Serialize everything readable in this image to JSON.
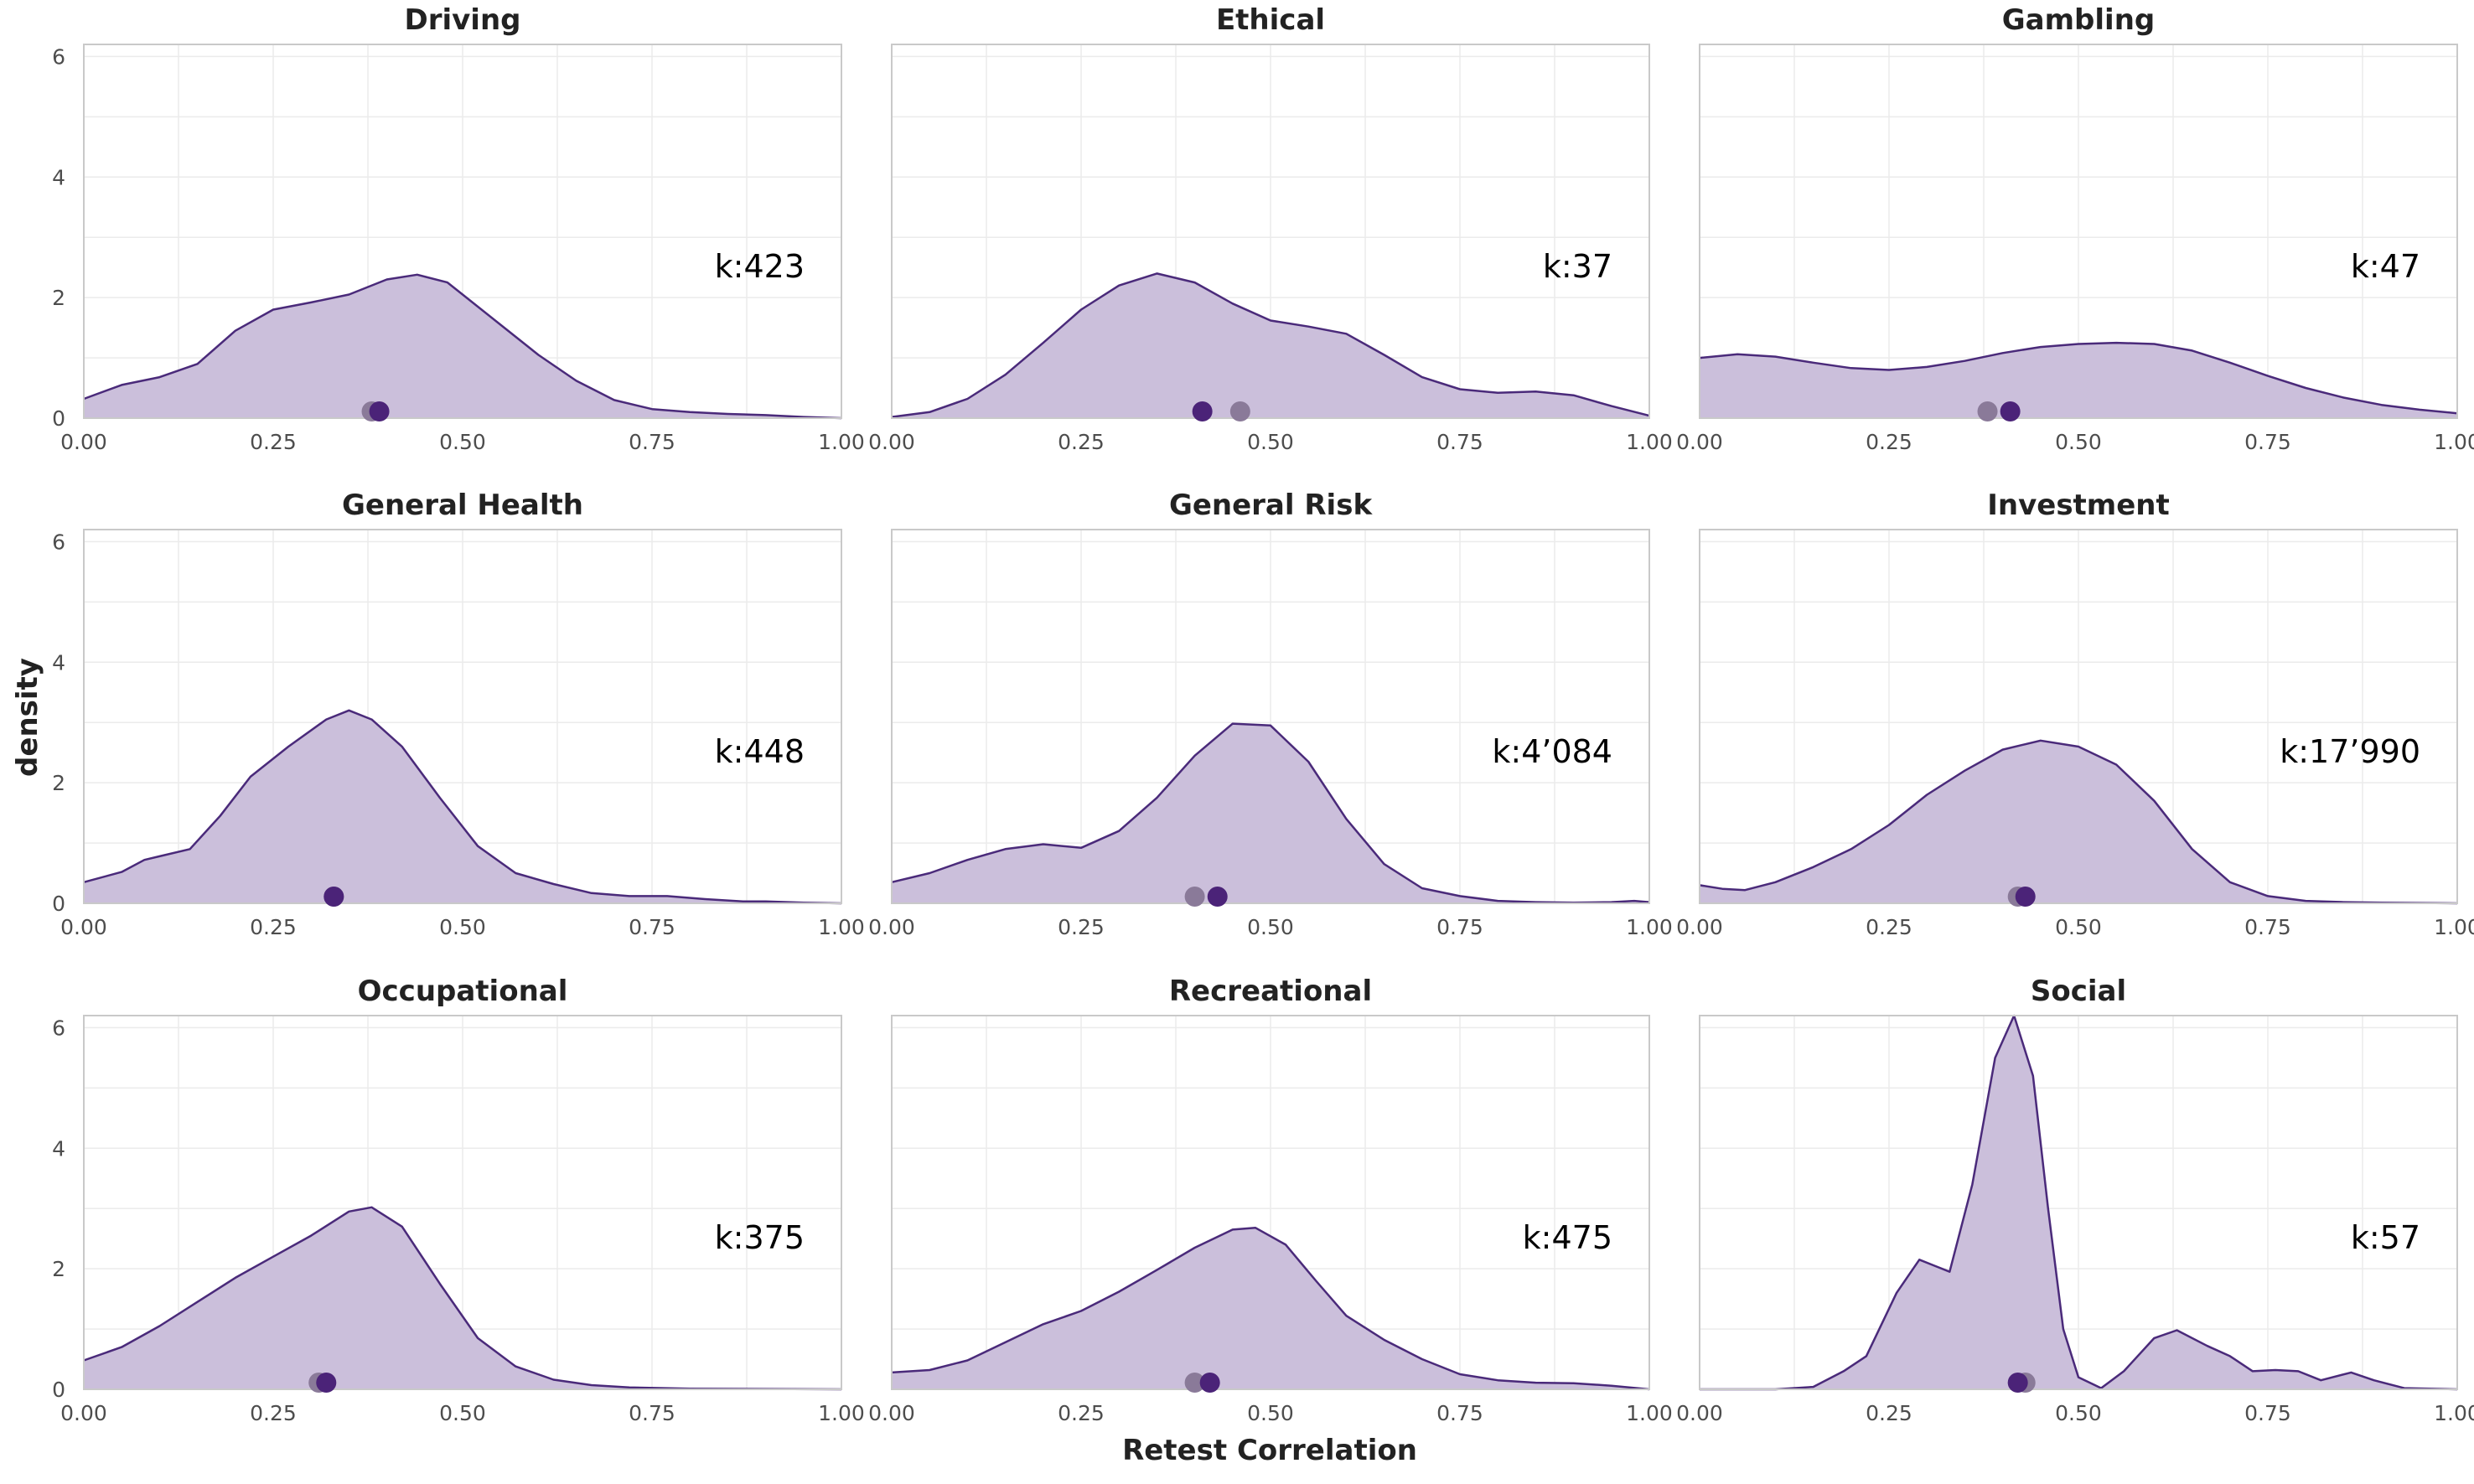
{
  "chart_data": {
    "type": "area",
    "subtype": "density-facets",
    "xlabel": "Retest Correlation",
    "ylabel": "density",
    "xlim": [
      0,
      1
    ],
    "ylim": [
      0,
      6.2
    ],
    "x_ticks": [
      "0.00",
      "0.25",
      "0.50",
      "0.75",
      "1.00"
    ],
    "y_ticks": [
      "0",
      "2",
      "4",
      "6"
    ],
    "grid": true,
    "colors": {
      "fill": "#cbbfdb",
      "line": "#4a2a7a",
      "point_dark": "#4b2378",
      "point_light": "#8a7a99"
    },
    "panels": [
      {
        "title": "Driving",
        "k_label": "k:423",
        "points": [
          {
            "x": 0.39,
            "shade": "dark"
          },
          {
            "x": 0.38,
            "shade": "light"
          }
        ],
        "density": [
          [
            0,
            0.32
          ],
          [
            0.05,
            0.55
          ],
          [
            0.1,
            0.68
          ],
          [
            0.15,
            0.9
          ],
          [
            0.2,
            1.45
          ],
          [
            0.25,
            1.8
          ],
          [
            0.3,
            1.92
          ],
          [
            0.35,
            2.05
          ],
          [
            0.4,
            2.3
          ],
          [
            0.44,
            2.38
          ],
          [
            0.48,
            2.25
          ],
          [
            0.5,
            2.05
          ],
          [
            0.55,
            1.55
          ],
          [
            0.6,
            1.05
          ],
          [
            0.65,
            0.62
          ],
          [
            0.7,
            0.3
          ],
          [
            0.75,
            0.15
          ],
          [
            0.8,
            0.1
          ],
          [
            0.85,
            0.07
          ],
          [
            0.9,
            0.05
          ],
          [
            0.95,
            0.02
          ],
          [
            1,
            0
          ]
        ]
      },
      {
        "title": "Ethical",
        "k_label": "k:37",
        "points": [
          {
            "x": 0.41,
            "shade": "dark"
          },
          {
            "x": 0.46,
            "shade": "light"
          }
        ],
        "density": [
          [
            0,
            0.02
          ],
          [
            0.05,
            0.1
          ],
          [
            0.1,
            0.32
          ],
          [
            0.15,
            0.72
          ],
          [
            0.2,
            1.25
          ],
          [
            0.25,
            1.8
          ],
          [
            0.3,
            2.2
          ],
          [
            0.35,
            2.4
          ],
          [
            0.4,
            2.25
          ],
          [
            0.45,
            1.9
          ],
          [
            0.5,
            1.62
          ],
          [
            0.55,
            1.52
          ],
          [
            0.6,
            1.4
          ],
          [
            0.65,
            1.05
          ],
          [
            0.7,
            0.68
          ],
          [
            0.75,
            0.48
          ],
          [
            0.8,
            0.42
          ],
          [
            0.85,
            0.44
          ],
          [
            0.9,
            0.38
          ],
          [
            0.95,
            0.2
          ],
          [
            1,
            0.04
          ]
        ]
      },
      {
        "title": "Gambling",
        "k_label": "k:47",
        "points": [
          {
            "x": 0.41,
            "shade": "dark"
          },
          {
            "x": 0.38,
            "shade": "light"
          }
        ],
        "density": [
          [
            0,
            1.0
          ],
          [
            0.05,
            1.06
          ],
          [
            0.1,
            1.02
          ],
          [
            0.15,
            0.92
          ],
          [
            0.2,
            0.83
          ],
          [
            0.25,
            0.8
          ],
          [
            0.3,
            0.85
          ],
          [
            0.35,
            0.95
          ],
          [
            0.4,
            1.08
          ],
          [
            0.45,
            1.18
          ],
          [
            0.5,
            1.23
          ],
          [
            0.55,
            1.25
          ],
          [
            0.6,
            1.23
          ],
          [
            0.65,
            1.12
          ],
          [
            0.7,
            0.92
          ],
          [
            0.75,
            0.7
          ],
          [
            0.8,
            0.5
          ],
          [
            0.85,
            0.34
          ],
          [
            0.9,
            0.22
          ],
          [
            0.95,
            0.14
          ],
          [
            1,
            0.08
          ]
        ]
      },
      {
        "title": "General Health",
        "k_label": "k:448",
        "points": [
          {
            "x": 0.33,
            "shade": "dark"
          },
          {
            "x": 0.33,
            "shade": "light"
          }
        ],
        "density": [
          [
            0,
            0.35
          ],
          [
            0.05,
            0.52
          ],
          [
            0.08,
            0.72
          ],
          [
            0.1,
            0.78
          ],
          [
            0.14,
            0.9
          ],
          [
            0.18,
            1.45
          ],
          [
            0.22,
            2.1
          ],
          [
            0.27,
            2.6
          ],
          [
            0.32,
            3.05
          ],
          [
            0.35,
            3.2
          ],
          [
            0.38,
            3.05
          ],
          [
            0.42,
            2.6
          ],
          [
            0.47,
            1.75
          ],
          [
            0.52,
            0.95
          ],
          [
            0.57,
            0.5
          ],
          [
            0.62,
            0.32
          ],
          [
            0.67,
            0.17
          ],
          [
            0.72,
            0.12
          ],
          [
            0.77,
            0.12
          ],
          [
            0.82,
            0.07
          ],
          [
            0.87,
            0.03
          ],
          [
            0.9,
            0.03
          ],
          [
            0.95,
            0.01
          ],
          [
            1,
            0
          ]
        ]
      },
      {
        "title": "General Risk",
        "k_label": "k:4’084",
        "points": [
          {
            "x": 0.43,
            "shade": "dark"
          },
          {
            "x": 0.4,
            "shade": "light"
          }
        ],
        "density": [
          [
            0,
            0.35
          ],
          [
            0.05,
            0.5
          ],
          [
            0.1,
            0.72
          ],
          [
            0.15,
            0.9
          ],
          [
            0.2,
            0.98
          ],
          [
            0.25,
            0.92
          ],
          [
            0.3,
            1.2
          ],
          [
            0.35,
            1.75
          ],
          [
            0.4,
            2.45
          ],
          [
            0.45,
            2.98
          ],
          [
            0.5,
            2.95
          ],
          [
            0.55,
            2.35
          ],
          [
            0.6,
            1.4
          ],
          [
            0.65,
            0.65
          ],
          [
            0.7,
            0.25
          ],
          [
            0.75,
            0.12
          ],
          [
            0.8,
            0.04
          ],
          [
            0.85,
            0.02
          ],
          [
            0.9,
            0.01
          ],
          [
            0.95,
            0.02
          ],
          [
            0.98,
            0.04
          ],
          [
            1,
            0.02
          ]
        ]
      },
      {
        "title": "Investment",
        "k_label": "k:17’990",
        "points": [
          {
            "x": 0.43,
            "shade": "dark"
          },
          {
            "x": 0.42,
            "shade": "light"
          }
        ],
        "density": [
          [
            0,
            0.3
          ],
          [
            0.03,
            0.24
          ],
          [
            0.06,
            0.22
          ],
          [
            0.1,
            0.35
          ],
          [
            0.15,
            0.6
          ],
          [
            0.2,
            0.9
          ],
          [
            0.25,
            1.3
          ],
          [
            0.3,
            1.8
          ],
          [
            0.35,
            2.2
          ],
          [
            0.4,
            2.55
          ],
          [
            0.45,
            2.7
          ],
          [
            0.5,
            2.6
          ],
          [
            0.55,
            2.3
          ],
          [
            0.6,
            1.7
          ],
          [
            0.65,
            0.9
          ],
          [
            0.7,
            0.35
          ],
          [
            0.75,
            0.12
          ],
          [
            0.8,
            0.04
          ],
          [
            0.85,
            0.02
          ],
          [
            0.9,
            0.01
          ],
          [
            1,
            0
          ]
        ]
      },
      {
        "title": "Occupational",
        "k_label": "k:375",
        "points": [
          {
            "x": 0.32,
            "shade": "dark"
          },
          {
            "x": 0.31,
            "shade": "light"
          }
        ],
        "density": [
          [
            0,
            0.48
          ],
          [
            0.05,
            0.7
          ],
          [
            0.1,
            1.05
          ],
          [
            0.15,
            1.45
          ],
          [
            0.2,
            1.85
          ],
          [
            0.25,
            2.2
          ],
          [
            0.3,
            2.55
          ],
          [
            0.35,
            2.95
          ],
          [
            0.38,
            3.02
          ],
          [
            0.42,
            2.7
          ],
          [
            0.47,
            1.75
          ],
          [
            0.52,
            0.85
          ],
          [
            0.57,
            0.38
          ],
          [
            0.62,
            0.16
          ],
          [
            0.67,
            0.07
          ],
          [
            0.72,
            0.03
          ],
          [
            0.8,
            0.01
          ],
          [
            1,
            0
          ]
        ]
      },
      {
        "title": "Recreational",
        "k_label": "k:475",
        "points": [
          {
            "x": 0.42,
            "shade": "dark"
          },
          {
            "x": 0.4,
            "shade": "light"
          }
        ],
        "density": [
          [
            0,
            0.28
          ],
          [
            0.05,
            0.32
          ],
          [
            0.1,
            0.48
          ],
          [
            0.15,
            0.78
          ],
          [
            0.2,
            1.08
          ],
          [
            0.25,
            1.3
          ],
          [
            0.3,
            1.62
          ],
          [
            0.35,
            1.98
          ],
          [
            0.4,
            2.35
          ],
          [
            0.45,
            2.65
          ],
          [
            0.48,
            2.68
          ],
          [
            0.52,
            2.4
          ],
          [
            0.56,
            1.8
          ],
          [
            0.6,
            1.22
          ],
          [
            0.65,
            0.82
          ],
          [
            0.7,
            0.5
          ],
          [
            0.75,
            0.25
          ],
          [
            0.8,
            0.15
          ],
          [
            0.85,
            0.11
          ],
          [
            0.9,
            0.1
          ],
          [
            0.95,
            0.06
          ],
          [
            1,
            0
          ]
        ]
      },
      {
        "title": "Social",
        "k_label": "k:57",
        "points": [
          {
            "x": 0.42,
            "shade": "dark"
          },
          {
            "x": 0.43,
            "shade": "light"
          }
        ],
        "density": [
          [
            0,
            0
          ],
          [
            0.1,
            0
          ],
          [
            0.15,
            0.04
          ],
          [
            0.19,
            0.3
          ],
          [
            0.22,
            0.55
          ],
          [
            0.26,
            1.6
          ],
          [
            0.29,
            2.15
          ],
          [
            0.31,
            2.05
          ],
          [
            0.33,
            1.95
          ],
          [
            0.36,
            3.4
          ],
          [
            0.39,
            5.5
          ],
          [
            0.415,
            6.2
          ],
          [
            0.44,
            5.2
          ],
          [
            0.46,
            3.0
          ],
          [
            0.48,
            1.0
          ],
          [
            0.5,
            0.2
          ],
          [
            0.53,
            0.02
          ],
          [
            0.56,
            0.3
          ],
          [
            0.6,
            0.85
          ],
          [
            0.63,
            0.98
          ],
          [
            0.67,
            0.72
          ],
          [
            0.7,
            0.55
          ],
          [
            0.73,
            0.3
          ],
          [
            0.76,
            0.32
          ],
          [
            0.79,
            0.3
          ],
          [
            0.82,
            0.15
          ],
          [
            0.86,
            0.28
          ],
          [
            0.89,
            0.15
          ],
          [
            0.93,
            0.02
          ],
          [
            1,
            0
          ]
        ]
      }
    ]
  }
}
